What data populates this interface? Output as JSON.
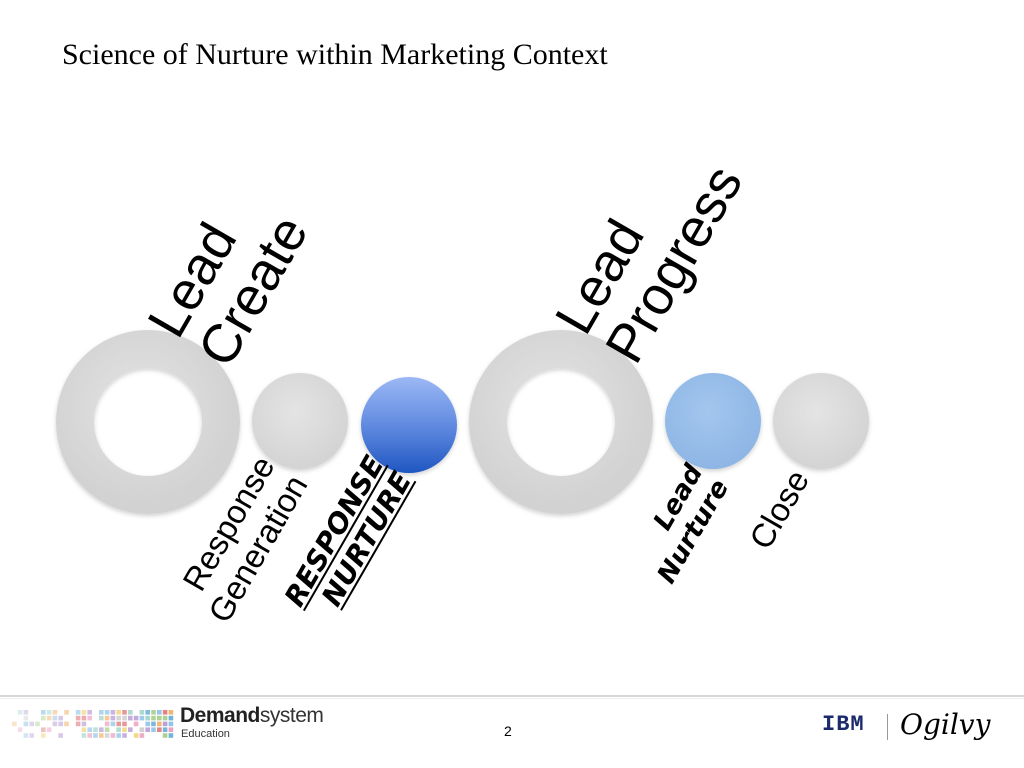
{
  "slide": {
    "title": "Science of Nurture within Marketing Context",
    "page_number": "2"
  },
  "stages": {
    "lead_create": [
      "Lead",
      "Create"
    ],
    "lead_progress": [
      "Lead",
      "Progress"
    ],
    "response_generation": [
      "Response",
      "Generation"
    ],
    "response_nurture": [
      "RESPONSE",
      "NURTURE"
    ],
    "lead_nurture": [
      "Lead",
      "Nurture"
    ],
    "close": "Close"
  },
  "colors": {
    "ring_grey": "#d9d9d9",
    "ball_grey": "#dcdcdc",
    "response_nurture_blue": "#4a78d8",
    "lead_nurture_blue": "#93bbe8"
  },
  "footer": {
    "brand_demand": "Demand",
    "brand_system": "system",
    "brand_sub": "Education",
    "partner_1": "IBM",
    "partner_2": "Ogilvy"
  }
}
